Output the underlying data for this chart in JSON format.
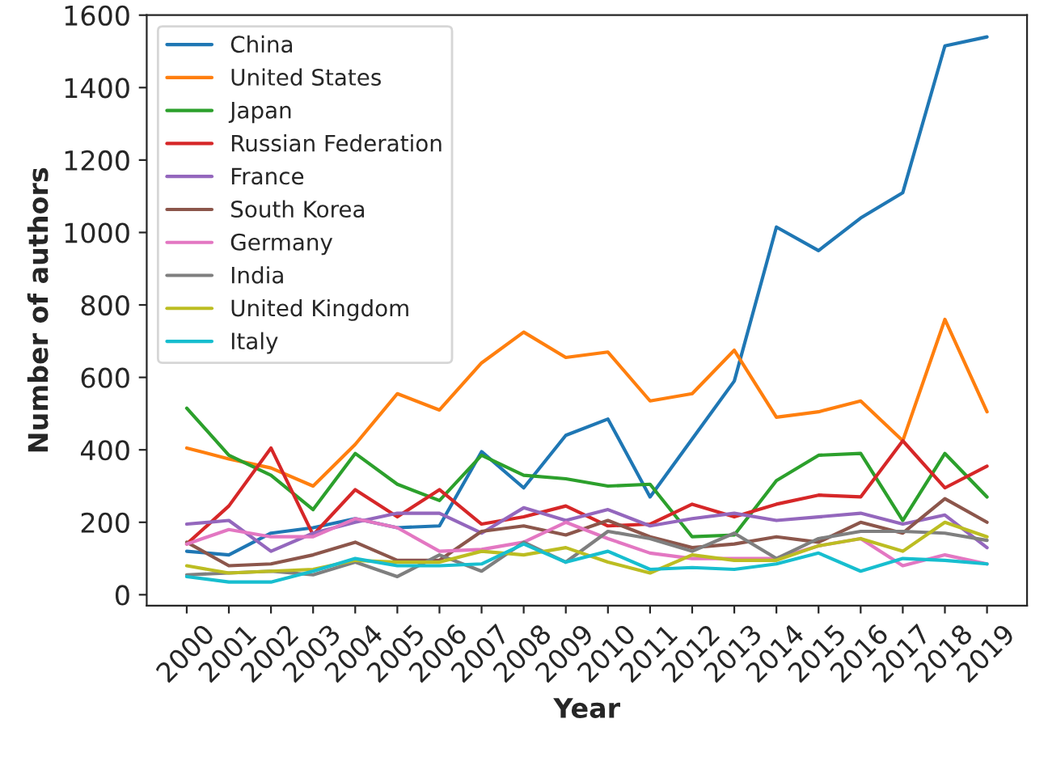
{
  "chart_data": {
    "type": "line",
    "xlabel": "Year",
    "ylabel": "Number of authors",
    "categories": [
      "2000",
      "2001",
      "2002",
      "2003",
      "2004",
      "2005",
      "2006",
      "2007",
      "2008",
      "2009",
      "2010",
      "2011",
      "2012",
      "2013",
      "2014",
      "2015",
      "2016",
      "2017",
      "2018",
      "2019"
    ],
    "ylim": [
      -30,
      1600
    ],
    "yticks": [
      0,
      200,
      400,
      600,
      800,
      1000,
      1200,
      1400,
      1600
    ],
    "grid": false,
    "legend": "top left",
    "series": [
      {
        "name": "China",
        "color": "#1f77b4",
        "values": [
          120,
          110,
          170,
          185,
          210,
          185,
          190,
          395,
          295,
          440,
          485,
          270,
          430,
          590,
          1015,
          950,
          1040,
          1110,
          1515,
          1540
        ]
      },
      {
        "name": "United States",
        "color": "#ff7f0e",
        "values": [
          405,
          375,
          350,
          300,
          415,
          555,
          510,
          640,
          725,
          655,
          670,
          535,
          555,
          675,
          490,
          505,
          535,
          425,
          760,
          505
        ]
      },
      {
        "name": "Japan",
        "color": "#2ca02c",
        "values": [
          515,
          385,
          330,
          235,
          390,
          305,
          260,
          385,
          330,
          320,
          300,
          305,
          160,
          165,
          315,
          385,
          390,
          205,
          390,
          270
        ]
      },
      {
        "name": "Russian Federation",
        "color": "#d62728",
        "values": [
          140,
          245,
          405,
          165,
          290,
          215,
          290,
          195,
          215,
          245,
          190,
          195,
          250,
          215,
          250,
          275,
          270,
          425,
          295,
          355
        ]
      },
      {
        "name": "France",
        "color": "#9467bd",
        "values": [
          195,
          205,
          120,
          170,
          200,
          225,
          225,
          170,
          240,
          205,
          235,
          190,
          210,
          225,
          205,
          215,
          225,
          195,
          220,
          130
        ]
      },
      {
        "name": "South Korea",
        "color": "#8c564b",
        "values": [
          145,
          80,
          85,
          110,
          145,
          95,
          95,
          175,
          190,
          165,
          205,
          160,
          130,
          140,
          160,
          145,
          200,
          170,
          265,
          200
        ]
      },
      {
        "name": "Germany",
        "color": "#e377c2",
        "values": [
          140,
          180,
          160,
          160,
          210,
          185,
          120,
          125,
          145,
          200,
          155,
          115,
          100,
          100,
          100,
          135,
          155,
          80,
          110,
          85
        ]
      },
      {
        "name": "India",
        "color": "#7f7f7f",
        "values": [
          55,
          60,
          65,
          55,
          90,
          50,
          110,
          65,
          145,
          90,
          175,
          155,
          120,
          170,
          100,
          155,
          175,
          175,
          170,
          150
        ]
      },
      {
        "name": "United Kingdom",
        "color": "#bcbd22",
        "values": [
          80,
          60,
          65,
          70,
          95,
          90,
          90,
          120,
          110,
          130,
          90,
          60,
          110,
          95,
          95,
          135,
          155,
          120,
          200,
          160
        ]
      },
      {
        "name": "Italy",
        "color": "#17becf",
        "values": [
          50,
          35,
          35,
          65,
          100,
          80,
          80,
          85,
          140,
          90,
          120,
          70,
          75,
          70,
          85,
          115,
          65,
          100,
          95,
          85
        ]
      }
    ]
  }
}
